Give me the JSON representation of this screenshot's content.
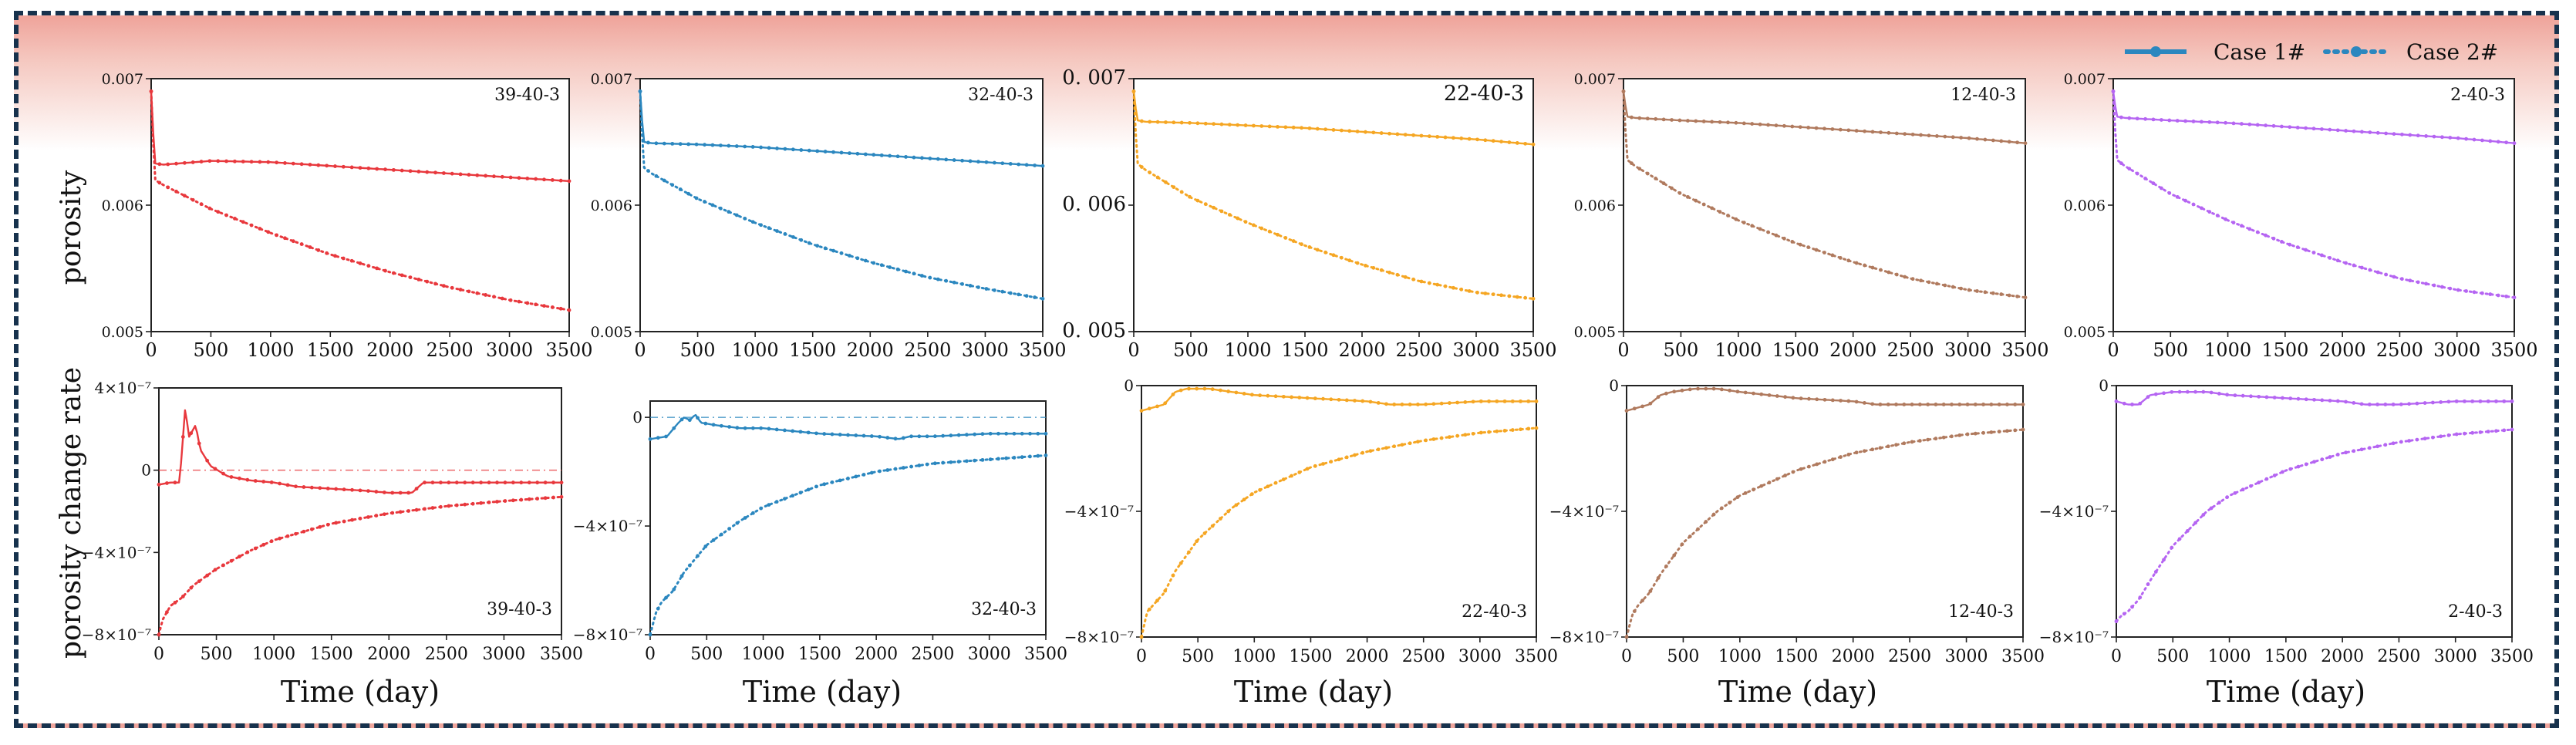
{
  "legend": {
    "items": [
      {
        "label": "Case 1#",
        "style": "solid"
      },
      {
        "label": "Case 2#",
        "style": "dotted"
      }
    ]
  },
  "labels": {
    "top_ylabel": "porosity",
    "bottom_ylabel": "porosity change rate",
    "xlabel": "Time (day)"
  },
  "chart_data": [
    {
      "type": "line",
      "title": "39-40-3",
      "quantity": "porosity",
      "color": "#e8383d",
      "xlim": [
        0,
        3500
      ],
      "ylim": [
        0.005,
        0.007
      ],
      "xticks": [
        "0",
        "500",
        "1000",
        "1500",
        "2000",
        "2500",
        "3000",
        "3500"
      ],
      "yticks": [
        "0.005",
        "0.006",
        "0.007"
      ],
      "xlabel": "",
      "ylabel": "porosity",
      "series": [
        {
          "name": "Case 1#",
          "x": [
            0,
            30,
            100,
            500,
            1000,
            1500,
            2000,
            2500,
            3000,
            3500
          ],
          "y": [
            0.0069,
            0.00633,
            0.00632,
            0.00635,
            0.00634,
            0.00631,
            0.00628,
            0.00625,
            0.00622,
            0.00619
          ]
        },
        {
          "name": "Case 2#",
          "x": [
            0,
            30,
            100,
            500,
            1000,
            1500,
            2000,
            2500,
            3000,
            3500
          ],
          "y": [
            0.0069,
            0.0062,
            0.00616,
            0.00597,
            0.00578,
            0.00561,
            0.00547,
            0.00535,
            0.00525,
            0.00517
          ]
        }
      ]
    },
    {
      "type": "line",
      "title": "32-40-3",
      "quantity": "porosity",
      "color": "#2b87bf",
      "xlim": [
        0,
        3500
      ],
      "ylim": [
        0.005,
        0.007
      ],
      "xticks": [
        "0",
        "500",
        "1000",
        "1500",
        "2000",
        "2500",
        "3000",
        "3500"
      ],
      "yticks": [
        "0.005",
        "0.006",
        "0.007"
      ],
      "xlabel": "",
      "ylabel": "",
      "series": [
        {
          "name": "Case 1#",
          "x": [
            0,
            30,
            100,
            500,
            1000,
            1500,
            2000,
            2500,
            3000,
            3500
          ],
          "y": [
            0.0069,
            0.0065,
            0.00649,
            0.00648,
            0.00646,
            0.00643,
            0.0064,
            0.00637,
            0.00634,
            0.00631
          ]
        },
        {
          "name": "Case 2#",
          "x": [
            0,
            30,
            100,
            500,
            1000,
            1500,
            2000,
            2500,
            3000,
            3500
          ],
          "y": [
            0.0069,
            0.0063,
            0.00625,
            0.00605,
            0.00586,
            0.00569,
            0.00555,
            0.00543,
            0.00534,
            0.00526
          ]
        }
      ]
    },
    {
      "type": "line",
      "title": "22-40-3",
      "quantity": "porosity",
      "color": "#f5a623",
      "xlim": [
        0,
        3500
      ],
      "ylim": [
        0.005,
        0.007
      ],
      "xticks": [
        "0",
        "500",
        "1000",
        "1500",
        "2000",
        "2500",
        "3000",
        "3500"
      ],
      "yticks": [
        "0. 005",
        "0. 006",
        "0. 007"
      ],
      "xlabel": "",
      "ylabel": "",
      "series": [
        {
          "name": "Case 1#",
          "x": [
            0,
            30,
            100,
            500,
            1000,
            1500,
            2000,
            2500,
            3000,
            3500
          ],
          "y": [
            0.0069,
            0.00667,
            0.00666,
            0.00665,
            0.00663,
            0.00661,
            0.00658,
            0.00655,
            0.00652,
            0.00648
          ]
        },
        {
          "name": "Case 2#",
          "x": [
            0,
            30,
            100,
            500,
            1000,
            1500,
            2000,
            2500,
            3000,
            3500
          ],
          "y": [
            0.0069,
            0.00633,
            0.00628,
            0.00606,
            0.00586,
            0.00568,
            0.00553,
            0.0054,
            0.00531,
            0.00526
          ]
        }
      ]
    },
    {
      "type": "line",
      "title": "12-40-3",
      "quantity": "porosity",
      "color": "#b07a5e",
      "xlim": [
        0,
        3500
      ],
      "ylim": [
        0.005,
        0.007
      ],
      "xticks": [
        "0",
        "500",
        "1000",
        "1500",
        "2000",
        "2500",
        "3000",
        "3500"
      ],
      "yticks": [
        "0.005",
        "0.006",
        "0.007"
      ],
      "xlabel": "",
      "ylabel": "",
      "series": [
        {
          "name": "Case 1#",
          "x": [
            0,
            30,
            100,
            500,
            1000,
            1500,
            2000,
            2500,
            3000,
            3500
          ],
          "y": [
            0.0069,
            0.0067,
            0.00669,
            0.00667,
            0.00665,
            0.00662,
            0.00659,
            0.00656,
            0.00653,
            0.00649
          ]
        },
        {
          "name": "Case 2#",
          "x": [
            0,
            30,
            100,
            500,
            1000,
            1500,
            2000,
            2500,
            3000,
            3500
          ],
          "y": [
            0.0069,
            0.00636,
            0.00631,
            0.00609,
            0.00588,
            0.0057,
            0.00555,
            0.00542,
            0.00533,
            0.00527
          ]
        }
      ]
    },
    {
      "type": "line",
      "title": "2-40-3",
      "quantity": "porosity",
      "color": "#b565f2",
      "xlim": [
        0,
        3500
      ],
      "ylim": [
        0.005,
        0.007
      ],
      "xticks": [
        "0",
        "500",
        "1000",
        "1500",
        "2000",
        "2500",
        "3000",
        "3500"
      ],
      "yticks": [
        "0.005",
        "0.006",
        "0.007"
      ],
      "xlabel": "",
      "ylabel": "",
      "series": [
        {
          "name": "Case 1#",
          "x": [
            0,
            30,
            100,
            500,
            1000,
            1500,
            2000,
            2500,
            3000,
            3500
          ],
          "y": [
            0.0069,
            0.0067,
            0.00669,
            0.00667,
            0.00665,
            0.00662,
            0.00659,
            0.00656,
            0.00653,
            0.00649
          ]
        },
        {
          "name": "Case 2#",
          "x": [
            0,
            30,
            100,
            500,
            1000,
            1500,
            2000,
            2500,
            3000,
            3500
          ],
          "y": [
            0.0069,
            0.00636,
            0.00631,
            0.00609,
            0.00588,
            0.0057,
            0.00555,
            0.00542,
            0.00533,
            0.00527
          ]
        }
      ]
    },
    {
      "type": "line",
      "title": "39-40-3",
      "quantity": "porosity change rate",
      "color": "#e8383d",
      "xlim": [
        0,
        3500
      ],
      "ylim": [
        -8e-07,
        4e-07
      ],
      "xticks": [
        "0",
        "500",
        "1000",
        "1500",
        "2000",
        "2500",
        "3000",
        "3500"
      ],
      "yticks": [
        "−8×10⁻⁷",
        "−4×10⁻⁷",
        "0",
        "4×10⁻⁷"
      ],
      "reference_line": 0,
      "xlabel": "Time (day)",
      "ylabel": "porosity change rate",
      "series": [
        {
          "name": "Case 1#",
          "x": [
            0,
            100,
            180,
            230,
            260,
            320,
            360,
            450,
            600,
            800,
            1000,
            1200,
            1500,
            1800,
            2000,
            2200,
            2300,
            2500,
            3000,
            3500
          ],
          "y": [
            -7e-08,
            -6e-08,
            -6e-08,
            3.1e-07,
            1.6e-07,
            2.2e-07,
            1e-07,
            2e-08,
            -3e-08,
            -5e-08,
            -6e-08,
            -8e-08,
            -9e-08,
            -1e-07,
            -1.1e-07,
            -1.1e-07,
            -6e-08,
            -6e-08,
            -6e-08,
            -6e-08
          ]
        },
        {
          "name": "Case 2#",
          "x": [
            0,
            30,
            100,
            200,
            300,
            500,
            800,
            1000,
            1500,
            2000,
            2500,
            3000,
            3500
          ],
          "y": [
            -8e-07,
            -7.3e-07,
            -6.6e-07,
            -6.2e-07,
            -5.6e-07,
            -4.8e-07,
            -3.9e-07,
            -3.4e-07,
            -2.6e-07,
            -2.1e-07,
            -1.75e-07,
            -1.5e-07,
            -1.3e-07
          ]
        }
      ]
    },
    {
      "type": "line",
      "title": "32-40-3",
      "quantity": "porosity change rate",
      "color": "#2b87bf",
      "xlim": [
        0,
        3500
      ],
      "ylim": [
        -8e-07,
        6e-08
      ],
      "xticks": [
        "0",
        "500",
        "1000",
        "1500",
        "2000",
        "2500",
        "3000",
        "3500"
      ],
      "yticks": [
        "−8×10⁻⁷",
        "−4×10⁻⁷",
        "0"
      ],
      "reference_line": 0,
      "xlabel": "Time (day)",
      "ylabel": "",
      "series": [
        {
          "name": "Case 1#",
          "x": [
            0,
            150,
            250,
            300,
            350,
            400,
            450,
            600,
            800,
            1000,
            1500,
            2000,
            2200,
            2300,
            2500,
            3000,
            3500
          ],
          "y": [
            -8e-08,
            -7e-08,
            -2e-08,
            0,
            -1e-08,
            1e-08,
            -2e-08,
            -3e-08,
            -4e-08,
            -4e-08,
            -6e-08,
            -7e-08,
            -8e-08,
            -7e-08,
            -7e-08,
            -6e-08,
            -6e-08
          ]
        },
        {
          "name": "Case 2#",
          "x": [
            0,
            50,
            100,
            200,
            300,
            500,
            800,
            1000,
            1500,
            2000,
            2500,
            3000,
            3500
          ],
          "y": [
            -8e-07,
            -7.2e-07,
            -6.8e-07,
            -6.4e-07,
            -5.7e-07,
            -4.7e-07,
            -3.8e-07,
            -3.3e-07,
            -2.5e-07,
            -2e-07,
            -1.7e-07,
            -1.55e-07,
            -1.4e-07
          ]
        }
      ]
    },
    {
      "type": "line",
      "title": "22-40-3",
      "quantity": "porosity change rate",
      "color": "#f5a623",
      "xlim": [
        0,
        3500
      ],
      "ylim": [
        -8e-07,
        0
      ],
      "xticks": [
        "0",
        "500",
        "1000",
        "1500",
        "2000",
        "2500",
        "3000",
        "3500"
      ],
      "yticks": [
        "−8×10⁻⁷",
        "−4×10⁻⁷",
        "0"
      ],
      "xlabel": "Time (day)",
      "ylabel": "",
      "series": [
        {
          "name": "Case 1#",
          "x": [
            0,
            100,
            200,
            300,
            400,
            600,
            800,
            1000,
            1500,
            2000,
            2200,
            2500,
            3000,
            3500
          ],
          "y": [
            -8e-08,
            -7e-08,
            -6e-08,
            -2e-08,
            -1e-08,
            -1e-08,
            -2e-08,
            -3e-08,
            -4e-08,
            -5e-08,
            -6e-08,
            -6e-08,
            -5e-08,
            -5e-08
          ]
        },
        {
          "name": "Case 2#",
          "x": [
            0,
            50,
            100,
            200,
            300,
            500,
            800,
            1000,
            1500,
            2000,
            2500,
            3000,
            3500
          ],
          "y": [
            -8e-07,
            -7.2e-07,
            -7e-07,
            -6.6e-07,
            -5.9e-07,
            -4.9e-07,
            -3.9e-07,
            -3.4e-07,
            -2.6e-07,
            -2.1e-07,
            -1.75e-07,
            -1.5e-07,
            -1.35e-07
          ]
        }
      ]
    },
    {
      "type": "line",
      "title": "12-40-3",
      "quantity": "porosity change rate",
      "color": "#b07a5e",
      "xlim": [
        0,
        3500
      ],
      "ylim": [
        -8e-07,
        0
      ],
      "xticks": [
        "0",
        "500",
        "1000",
        "1500",
        "2000",
        "2500",
        "3000",
        "3500"
      ],
      "yticks": [
        "−8×10⁻⁷",
        "−4×10⁻⁷",
        "0"
      ],
      "xlabel": "Time (day)",
      "ylabel": "",
      "series": [
        {
          "name": "Case 1#",
          "x": [
            0,
            100,
            200,
            300,
            400,
            600,
            800,
            1000,
            1500,
            2000,
            2200,
            2500,
            3000,
            3500
          ],
          "y": [
            -8e-08,
            -7e-08,
            -6e-08,
            -3e-08,
            -2e-08,
            -1e-08,
            -1e-08,
            -2e-08,
            -4e-08,
            -5e-08,
            -6e-08,
            -6e-08,
            -6e-08,
            -6e-08
          ]
        },
        {
          "name": "Case 2#",
          "x": [
            0,
            50,
            100,
            200,
            300,
            500,
            800,
            1000,
            1500,
            2000,
            2500,
            3000,
            3500
          ],
          "y": [
            -8e-07,
            -7.3e-07,
            -7e-07,
            -6.6e-07,
            -6e-07,
            -5e-07,
            -4e-07,
            -3.5e-07,
            -2.7e-07,
            -2.15e-07,
            -1.8e-07,
            -1.55e-07,
            -1.4e-07
          ]
        }
      ]
    },
    {
      "type": "line",
      "title": "2-40-3",
      "quantity": "porosity change rate",
      "color": "#b565f2",
      "xlim": [
        0,
        3500
      ],
      "ylim": [
        -8e-07,
        0
      ],
      "xticks": [
        "0",
        "500",
        "1000",
        "1500",
        "2000",
        "2500",
        "3000",
        "3500"
      ],
      "yticks": [
        "−8×10⁻⁷",
        "−4×10⁻⁷",
        "0"
      ],
      "xlabel": "Time (day)",
      "ylabel": "",
      "series": [
        {
          "name": "Case 1#",
          "x": [
            0,
            100,
            200,
            300,
            500,
            800,
            1000,
            1500,
            2000,
            2200,
            2500,
            3000,
            3500
          ],
          "y": [
            -5e-08,
            -6e-08,
            -6e-08,
            -3e-08,
            -2e-08,
            -2e-08,
            -3e-08,
            -4e-08,
            -5e-08,
            -6e-08,
            -6e-08,
            -5e-08,
            -5e-08
          ]
        },
        {
          "name": "Case 2#",
          "x": [
            0,
            50,
            100,
            200,
            300,
            500,
            800,
            1000,
            1500,
            2000,
            2500,
            3000,
            3500
          ],
          "y": [
            -7.5e-07,
            -7.3e-07,
            -7.2e-07,
            -6.8e-07,
            -6.2e-07,
            -5.1e-07,
            -4e-07,
            -3.5e-07,
            -2.7e-07,
            -2.15e-07,
            -1.8e-07,
            -1.55e-07,
            -1.4e-07
          ]
        }
      ]
    }
  ]
}
